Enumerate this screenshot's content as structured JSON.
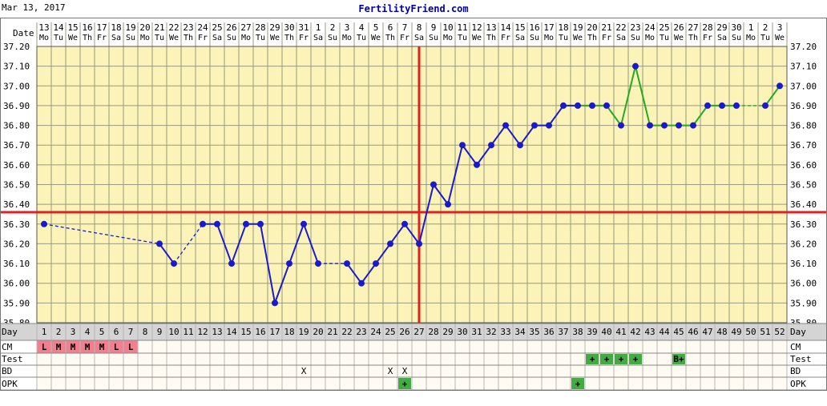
{
  "header": {
    "date": "Mar 13, 2017",
    "site": "FertilityFriend.com"
  },
  "row_labels": {
    "date": "Date",
    "day": "Day",
    "cm": "CM",
    "test": "Test",
    "bd": "BD",
    "opk": "OPK"
  },
  "colors": {
    "background": "#ffffff",
    "plot_bg": "#fbf3b8",
    "grid": "#9a9a80",
    "temp_line": "#1a1acc",
    "postovulation_line": "#22aa22",
    "coverline": "#dd2222",
    "ovulation_line": "#dd2222",
    "cm_fill": "#f08090",
    "test_fill": "#44aa44",
    "day_row_bg": "#d4d4d4",
    "lower_rows_bg": "#fffaf2"
  },
  "chart_data": {
    "type": "line",
    "title": "",
    "xlabel": "Day",
    "ylabel": "",
    "ylim": [
      35.8,
      37.2
    ],
    "yticks": [
      "35.80",
      "35.90",
      "36.00",
      "36.10",
      "36.20",
      "36.30",
      "36.40",
      "36.50",
      "36.60",
      "36.70",
      "36.80",
      "36.90",
      "37.00",
      "37.10",
      "37.20"
    ],
    "cycle_days": [
      1,
      2,
      3,
      4,
      5,
      6,
      7,
      8,
      9,
      10,
      11,
      12,
      13,
      14,
      15,
      16,
      17,
      18,
      19,
      20,
      21,
      22,
      23,
      24,
      25,
      26,
      27,
      28,
      29,
      30,
      31,
      32,
      33,
      34,
      35,
      36,
      37,
      38,
      39,
      40,
      41,
      42,
      43,
      44,
      45,
      46,
      47,
      48,
      49,
      50,
      51,
      52
    ],
    "dates": [
      "13",
      "14",
      "15",
      "16",
      "17",
      "18",
      "19",
      "20",
      "21",
      "22",
      "23",
      "24",
      "25",
      "26",
      "27",
      "28",
      "29",
      "30",
      "31",
      "1",
      "2",
      "3",
      "4",
      "5",
      "6",
      "7",
      "8",
      "9",
      "10",
      "11",
      "12",
      "13",
      "14",
      "15",
      "16",
      "17",
      "18",
      "19",
      "20",
      "21",
      "22",
      "23",
      "24",
      "25",
      "26",
      "27",
      "28",
      "29",
      "30",
      "1",
      "2",
      "3"
    ],
    "weekdays": [
      "Mo",
      "Tu",
      "We",
      "Th",
      "Fr",
      "Sa",
      "Su",
      "Mo",
      "Tu",
      "We",
      "Th",
      "Fr",
      "Sa",
      "Su",
      "Mo",
      "Tu",
      "We",
      "Th",
      "Fr",
      "Sa",
      "Su",
      "Mo",
      "Tu",
      "We",
      "Th",
      "Fr",
      "Sa",
      "Su",
      "Mo",
      "Tu",
      "We",
      "Th",
      "Fr",
      "Sa",
      "Su",
      "Mo",
      "Tu",
      "We",
      "Th",
      "Fr",
      "Sa",
      "Su",
      "Mo",
      "Tu",
      "We",
      "Th",
      "Fr",
      "Sa",
      "Su",
      "Mo",
      "Tu",
      "We"
    ],
    "temperatures": [
      {
        "day": 1,
        "temp": 36.3
      },
      {
        "day": 9,
        "temp": 36.2
      },
      {
        "day": 10,
        "temp": 36.1
      },
      {
        "day": 12,
        "temp": 36.3
      },
      {
        "day": 13,
        "temp": 36.3
      },
      {
        "day": 14,
        "temp": 36.1
      },
      {
        "day": 15,
        "temp": 36.3
      },
      {
        "day": 16,
        "temp": 36.3
      },
      {
        "day": 17,
        "temp": 35.9
      },
      {
        "day": 18,
        "temp": 36.1
      },
      {
        "day": 19,
        "temp": 36.3
      },
      {
        "day": 20,
        "temp": 36.1
      },
      {
        "day": 22,
        "temp": 36.1
      },
      {
        "day": 23,
        "temp": 36.0
      },
      {
        "day": 24,
        "temp": 36.1
      },
      {
        "day": 25,
        "temp": 36.2
      },
      {
        "day": 26,
        "temp": 36.3
      },
      {
        "day": 27,
        "temp": 36.2
      },
      {
        "day": 28,
        "temp": 36.5
      },
      {
        "day": 29,
        "temp": 36.4
      },
      {
        "day": 30,
        "temp": 36.7
      },
      {
        "day": 31,
        "temp": 36.6
      },
      {
        "day": 32,
        "temp": 36.7
      },
      {
        "day": 33,
        "temp": 36.8
      },
      {
        "day": 34,
        "temp": 36.7
      },
      {
        "day": 35,
        "temp": 36.8
      },
      {
        "day": 36,
        "temp": 36.8
      },
      {
        "day": 37,
        "temp": 36.9
      },
      {
        "day": 38,
        "temp": 36.9
      },
      {
        "day": 39,
        "temp": 36.9
      },
      {
        "day": 40,
        "temp": 36.9
      },
      {
        "day": 41,
        "temp": 36.8
      },
      {
        "day": 42,
        "temp": 37.1
      },
      {
        "day": 43,
        "temp": 36.8
      },
      {
        "day": 44,
        "temp": 36.8
      },
      {
        "day": 45,
        "temp": 36.8
      },
      {
        "day": 46,
        "temp": 36.8
      },
      {
        "day": 47,
        "temp": 36.9
      },
      {
        "day": 48,
        "temp": 36.9
      },
      {
        "day": 49,
        "temp": 36.9
      },
      {
        "day": 51,
        "temp": 36.9
      },
      {
        "day": 52,
        "temp": 37.0
      }
    ],
    "green_from_day": 38,
    "coverline": 36.36,
    "ovulation_day": 27,
    "cm": [
      {
        "day": 1,
        "label": "L"
      },
      {
        "day": 2,
        "label": "M"
      },
      {
        "day": 3,
        "label": "M"
      },
      {
        "day": 4,
        "label": "M"
      },
      {
        "day": 5,
        "label": "M"
      },
      {
        "day": 6,
        "label": "L"
      },
      {
        "day": 7,
        "label": "L"
      }
    ],
    "test": [
      {
        "day": 39,
        "label": "+"
      },
      {
        "day": 40,
        "label": "+"
      },
      {
        "day": 41,
        "label": "+"
      },
      {
        "day": 42,
        "label": "+"
      },
      {
        "day": 45,
        "label": "B+"
      }
    ],
    "bd": [
      {
        "day": 19,
        "label": "X"
      },
      {
        "day": 25,
        "label": "X"
      },
      {
        "day": 26,
        "label": "X"
      }
    ],
    "opk": [
      {
        "day": 26,
        "label": "+"
      },
      {
        "day": 38,
        "label": "+"
      }
    ]
  }
}
